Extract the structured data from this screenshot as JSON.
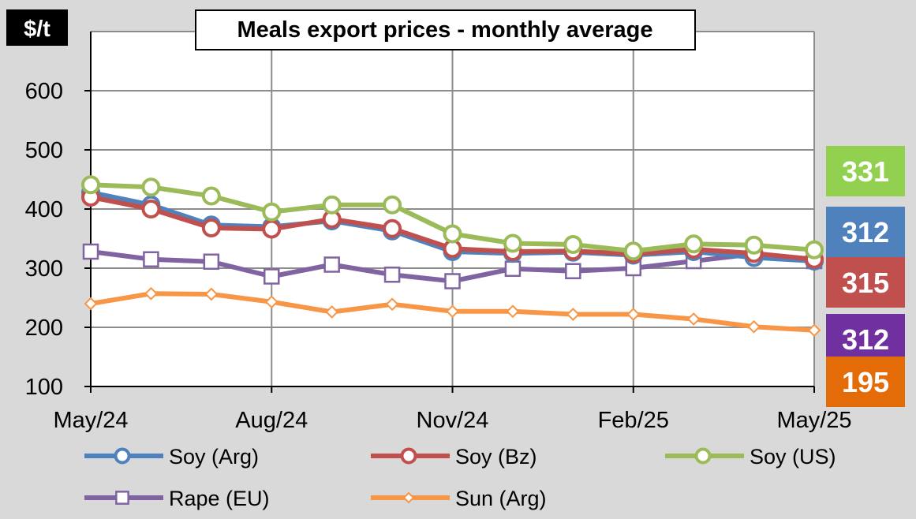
{
  "chart_data": {
    "type": "line",
    "title": "Meals export prices - monthly average",
    "unit_label": "$/t",
    "ylim": [
      100,
      700
    ],
    "yticks": [
      100,
      200,
      300,
      400,
      500,
      600
    ],
    "x_tick_labels": [
      "May/24",
      "Aug/24",
      "Nov/24",
      "Feb/25",
      "May/25"
    ],
    "x_tick_indices": [
      0,
      3,
      6,
      9,
      12
    ],
    "x": [
      "May/24",
      "Jun/24",
      "Jul/24",
      "Aug/24",
      "Sep/24",
      "Oct/24",
      "Nov/24",
      "Dec/24",
      "Jan/25",
      "Feb/25",
      "Mar/25",
      "Apr/25",
      "May/25"
    ],
    "grid": true,
    "legend_position": "bottom",
    "series": [
      {
        "name": "Soy (Arg)",
        "color": "#4f81bd",
        "marker": "circle",
        "values": [
          428,
          407,
          373,
          370,
          380,
          363,
          328,
          325,
          327,
          322,
          328,
          318,
          312
        ]
      },
      {
        "name": "Soy (Bz)",
        "color": "#c0504d",
        "marker": "circle",
        "values": [
          420,
          400,
          368,
          366,
          383,
          367,
          333,
          328,
          329,
          324,
          332,
          325,
          315
        ]
      },
      {
        "name": "Soy (US)",
        "color": "#9bbb59",
        "marker": "circle",
        "values": [
          441,
          437,
          422,
          395,
          407,
          407,
          358,
          342,
          340,
          329,
          341,
          339,
          331
        ]
      },
      {
        "name": "Rape (EU)",
        "color": "#8064a2",
        "marker": "square",
        "values": [
          328,
          315,
          311,
          286,
          306,
          289,
          278,
          299,
          295,
          300,
          312,
          324,
          312
        ]
      },
      {
        "name": "Sun (Arg)",
        "color": "#f79646",
        "marker": "diamond",
        "values": [
          240,
          257,
          256,
          243,
          226,
          239,
          227,
          227,
          222,
          222,
          214,
          201,
          195
        ]
      }
    ],
    "end_badges": [
      {
        "label": "331",
        "color": "#92d050"
      },
      {
        "label": "312",
        "color": "#4f81bd"
      },
      {
        "label": "315",
        "color": "#c0504d"
      },
      {
        "label": "312",
        "color": "#7030a0"
      },
      {
        "label": "195",
        "color": "#e36c09"
      }
    ]
  }
}
